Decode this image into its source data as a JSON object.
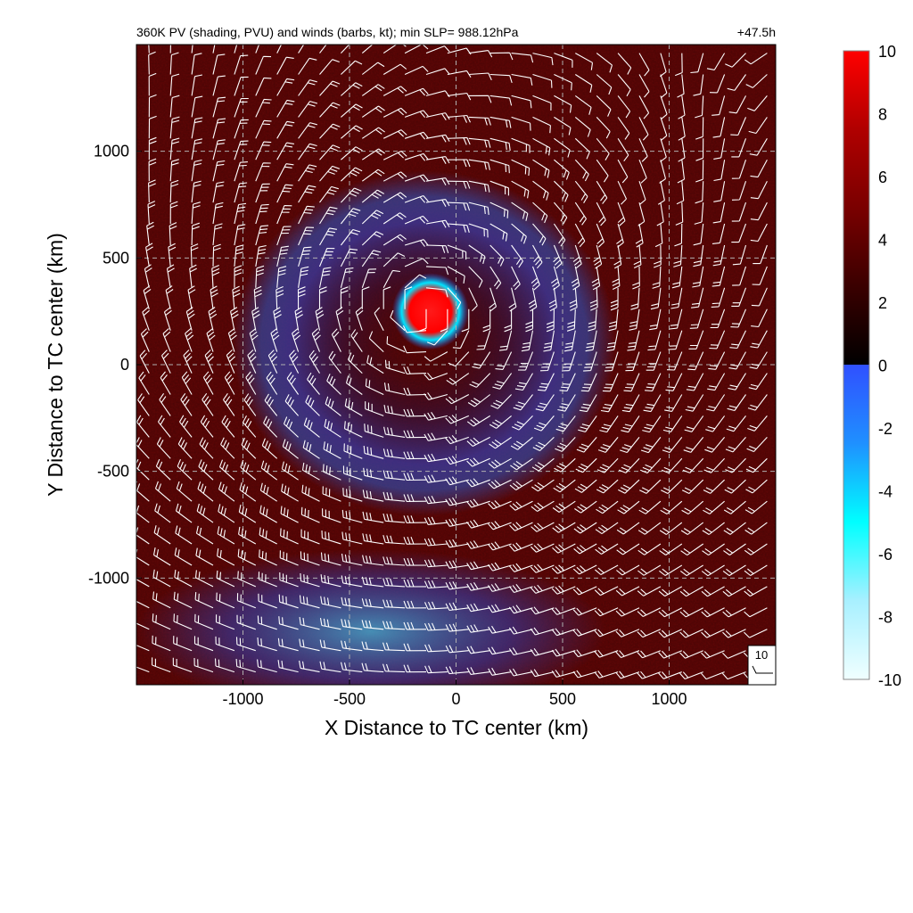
{
  "chart_data": {
    "type": "heatmap",
    "title": "360K PV (shading, PVU) and winds (barbs, kt); min SLP= 988.12hPa",
    "time_label": "+47.5h",
    "xlabel": "X Distance to TC center (km)",
    "ylabel": "Y Distance to TC center (km)",
    "xlim": [
      -1500,
      1500
    ],
    "ylim": [
      -1500,
      1500
    ],
    "xticks": [
      -1000,
      -500,
      0,
      500,
      1000
    ],
    "yticks": [
      -1000,
      -500,
      0,
      500,
      1000
    ],
    "xtick_labels": [
      "-1000",
      "-500",
      "0",
      "500",
      "1000"
    ],
    "ytick_labels": [
      "-1000",
      "-500",
      "0",
      "500",
      "1000"
    ],
    "grid": true,
    "grid_style": "dashed",
    "colorbar": {
      "range": [
        -10,
        10
      ],
      "ticks": [
        10,
        8,
        6,
        4,
        2,
        0,
        -2,
        -4,
        -6,
        -8,
        -10
      ],
      "tick_labels": [
        "10",
        "8",
        "6",
        "4",
        "2",
        "0",
        "-2",
        "-4",
        "-6",
        "-8",
        "-10"
      ],
      "positive_colors": [
        "#000000",
        "#3a0000",
        "#7a0000",
        "#b00000",
        "#ff0000"
      ],
      "negative_colors": [
        "#3050ff",
        "#1f90ff",
        "#00ffff",
        "#a8f0ff",
        "#f0ffff"
      ]
    },
    "reference_barb": {
      "label": "10",
      "speed_kt": 10
    },
    "features": [
      {
        "description_type": "positive_pv_blob",
        "x": -120,
        "y": 250,
        "radius_km": 180
      },
      {
        "description_type": "negative_pv_ring",
        "x": -150,
        "y": 100,
        "radius_km": 900
      },
      {
        "description_type": "negative_pv_band",
        "x": -400,
        "y": -1250,
        "radius_km": 1100
      }
    ]
  }
}
